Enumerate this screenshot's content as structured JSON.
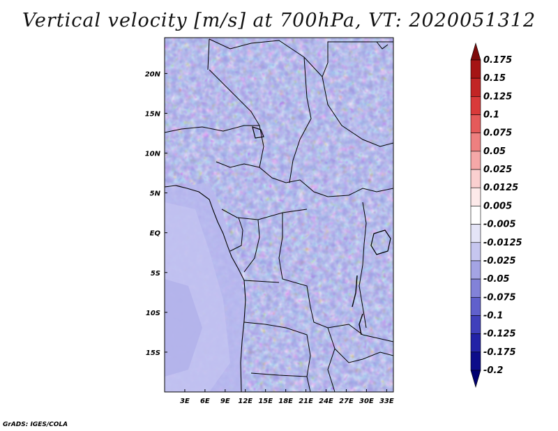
{
  "title": "Vertical velocity [m/s] at 700hPa, VT: 2020051312",
  "credit": "GrADS: IGES/COLA",
  "colors": {
    "land_border": "#000000",
    "contour": "#ffffff",
    "background": "#ffffff"
  },
  "map": {
    "lat_labels": [
      "20N",
      "15N",
      "10N",
      "5N",
      "EQ",
      "5S",
      "10S",
      "15S"
    ],
    "lat_values": [
      20,
      15,
      10,
      5,
      0,
      -5,
      -10,
      -15
    ],
    "lon_labels": [
      "3E",
      "6E",
      "9E",
      "12E",
      "15E",
      "18E",
      "21E",
      "24E",
      "27E",
      "30E",
      "33E"
    ],
    "lon_values": [
      3,
      6,
      9,
      12,
      15,
      18,
      21,
      24,
      27,
      30,
      33
    ],
    "lon_range": [
      0,
      34
    ],
    "lat_range": [
      -20,
      24.5
    ]
  },
  "colorbar": {
    "labels": [
      "0.175",
      "0.15",
      "0.125",
      "0.1",
      "0.075",
      "0.05",
      "0.025",
      "0.0125",
      "0.005",
      "-0.005",
      "-0.0125",
      "-0.025",
      "-0.05",
      "-0.075",
      "-0.1",
      "-0.125",
      "-0.175",
      "-0.2"
    ],
    "colors": [
      "#7d0a0a",
      "#a51515",
      "#c22525",
      "#d93a3a",
      "#e55a5a",
      "#ee8080",
      "#f5a8a8",
      "#fad0d0",
      "#fdeaea",
      "#ffffff",
      "#e4e4f7",
      "#c6c6ef",
      "#a4a4e4",
      "#8282d8",
      "#6060cc",
      "#4040bb",
      "#2323a6",
      "#0c0c8a",
      "#000070"
    ]
  }
}
